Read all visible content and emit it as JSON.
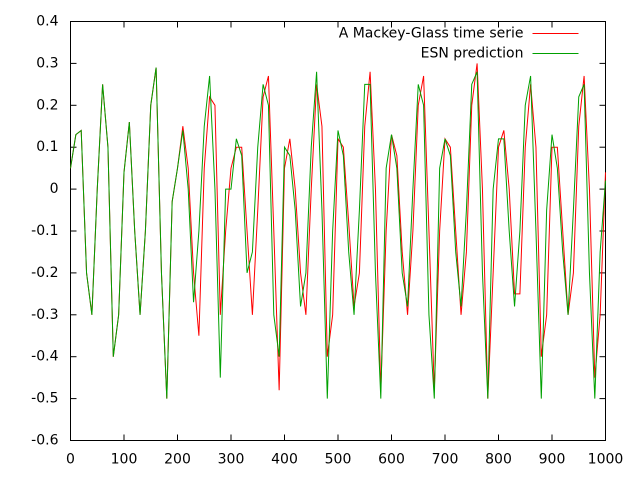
{
  "chart_data": {
    "type": "line",
    "x": [
      0,
      10,
      20,
      30,
      40,
      50,
      60,
      70,
      80,
      90,
      100,
      110,
      120,
      130,
      140,
      150,
      160,
      170,
      180,
      190,
      200,
      210,
      220,
      230,
      240,
      250,
      260,
      270,
      280,
      290,
      300,
      310,
      320,
      330,
      340,
      350,
      360,
      370,
      380,
      390,
      400,
      410,
      420,
      430,
      440,
      450,
      460,
      470,
      480,
      490,
      500,
      510,
      520,
      530,
      540,
      550,
      560,
      570,
      580,
      590,
      600,
      610,
      620,
      630,
      640,
      650,
      660,
      670,
      680,
      690,
      700,
      710,
      720,
      730,
      740,
      750,
      760,
      770,
      780,
      790,
      800,
      810,
      820,
      830,
      840,
      850,
      860,
      870,
      880,
      890,
      900,
      910,
      920,
      930,
      940,
      950,
      960,
      970,
      980,
      990,
      1000
    ],
    "series": [
      {
        "name": "A Mackey-Glass time serie",
        "color": "#ff0000",
        "values": [
          0.05,
          0.13,
          0.14,
          -0.2,
          -0.3,
          0.0,
          0.25,
          0.1,
          -0.4,
          -0.3,
          0.04,
          0.16,
          -0.1,
          -0.3,
          -0.1,
          0.2,
          0.29,
          -0.2,
          -0.5,
          -0.03,
          0.05,
          0.15,
          0.05,
          -0.2,
          -0.35,
          0.05,
          0.22,
          0.2,
          -0.3,
          -0.1,
          0.05,
          0.1,
          0.1,
          -0.1,
          -0.3,
          -0.05,
          0.22,
          0.27,
          -0.1,
          -0.48,
          0.05,
          0.12,
          0.0,
          -0.2,
          -0.3,
          0.0,
          0.25,
          0.15,
          -0.4,
          -0.3,
          0.12,
          0.1,
          -0.08,
          -0.28,
          -0.2,
          0.15,
          0.28,
          0.0,
          -0.48,
          -0.1,
          0.13,
          0.08,
          -0.15,
          -0.3,
          -0.1,
          0.2,
          0.27,
          -0.1,
          -0.48,
          -0.1,
          0.12,
          0.1,
          -0.1,
          -0.3,
          -0.15,
          0.2,
          0.3,
          0.0,
          -0.5,
          -0.2,
          0.1,
          0.14,
          0.0,
          -0.25,
          -0.25,
          0.1,
          0.25,
          0.1,
          -0.4,
          -0.3,
          0.1,
          0.1,
          -0.1,
          -0.3,
          -0.2,
          0.15,
          0.27,
          0.0,
          -0.45,
          -0.3,
          0.04
        ]
      },
      {
        "name": "ESN prediction",
        "color": "#00a000",
        "values": [
          0.05,
          0.13,
          0.14,
          -0.2,
          -0.3,
          0.0,
          0.25,
          0.1,
          -0.4,
          -0.3,
          0.04,
          0.16,
          -0.1,
          -0.3,
          -0.1,
          0.2,
          0.29,
          -0.2,
          -0.5,
          -0.03,
          0.05,
          0.14,
          0.0,
          -0.27,
          -0.1,
          0.15,
          0.27,
          0.0,
          -0.45,
          0.0,
          0.0,
          0.12,
          0.08,
          -0.2,
          -0.15,
          0.1,
          0.25,
          0.2,
          -0.3,
          -0.4,
          0.1,
          0.08,
          -0.05,
          -0.28,
          -0.2,
          0.1,
          0.28,
          -0.05,
          -0.5,
          -0.1,
          0.14,
          0.08,
          -0.15,
          -0.3,
          -0.05,
          0.25,
          0.25,
          -0.2,
          -0.5,
          0.05,
          0.13,
          0.05,
          -0.2,
          -0.28,
          0.0,
          0.25,
          0.2,
          -0.3,
          -0.5,
          0.05,
          0.12,
          0.08,
          -0.15,
          -0.28,
          -0.05,
          0.25,
          0.28,
          -0.2,
          -0.5,
          0.0,
          0.12,
          0.12,
          -0.1,
          -0.28,
          -0.1,
          0.2,
          0.27,
          -0.1,
          -0.5,
          -0.05,
          0.13,
          0.05,
          -0.15,
          -0.3,
          -0.05,
          0.22,
          0.25,
          -0.2,
          -0.5,
          -0.15,
          0.02
        ]
      }
    ],
    "xlim": [
      0,
      1000
    ],
    "xticks": [
      0,
      100,
      200,
      300,
      400,
      500,
      600,
      700,
      800,
      900,
      1000
    ],
    "ylim": [
      -0.6,
      0.4
    ],
    "yticks": [
      -0.6,
      -0.5,
      -0.4,
      -0.3,
      -0.2,
      -0.1,
      0,
      0.1,
      0.2,
      0.3,
      0.4
    ],
    "legend": "top-right"
  }
}
